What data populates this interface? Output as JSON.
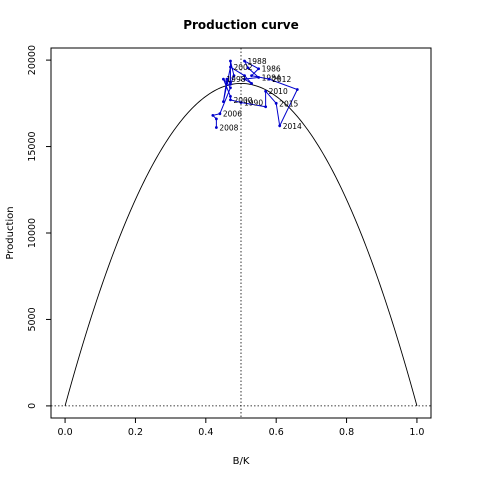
{
  "chart_data": {
    "type": "line",
    "title": "Production curve",
    "xlabel": "B/K",
    "ylabel": "Production",
    "xlim": [
      -0.04,
      1.04
    ],
    "ylim": [
      -700,
      20700
    ],
    "xticks": [
      0.0,
      0.2,
      0.4,
      0.6,
      0.8,
      1.0
    ],
    "xtick_labels": [
      "0.0",
      "0.2",
      "0.4",
      "0.6",
      "0.8",
      "1.0"
    ],
    "yticks": [
      0,
      5000,
      10000,
      15000,
      20000
    ],
    "ytick_labels": [
      "0",
      "5000",
      "10000",
      "15000",
      "20000"
    ],
    "grid": false,
    "reference_lines": {
      "vertical_x": 0.5,
      "horizontal_y": 0
    },
    "curve": {
      "type": "parabola",
      "root_left": 0.0,
      "root_right": 1.0,
      "peak_x": 0.5,
      "peak_y": 18650
    },
    "series": [
      {
        "color": "#0000cc",
        "points": [
          {
            "x": 0.47,
            "y": 18600,
            "label": ""
          },
          {
            "x": 0.48,
            "y": 19100,
            "label": ""
          },
          {
            "x": 0.47,
            "y": 19950,
            "label": ""
          },
          {
            "x": 0.47,
            "y": 18700,
            "label": ""
          },
          {
            "x": 0.46,
            "y": 18900,
            "label": ""
          },
          {
            "x": 0.45,
            "y": 17600,
            "label": ""
          },
          {
            "x": 0.47,
            "y": 19600,
            "label": "2002"
          },
          {
            "x": 0.51,
            "y": 19100,
            "label": ""
          },
          {
            "x": 0.53,
            "y": 18650,
            "label": ""
          },
          {
            "x": 0.51,
            "y": 18900,
            "label": ""
          },
          {
            "x": 0.55,
            "y": 19000,
            "label": "1984"
          },
          {
            "x": 0.52,
            "y": 19550,
            "label": ""
          },
          {
            "x": 0.51,
            "y": 19950,
            "label": "1988"
          },
          {
            "x": 0.55,
            "y": 19500,
            "label": "1986"
          },
          {
            "x": 0.53,
            "y": 19100,
            "label": ""
          },
          {
            "x": 0.58,
            "y": 18900,
            "label": "2012"
          },
          {
            "x": 0.66,
            "y": 18300,
            "label": ""
          },
          {
            "x": 0.61,
            "y": 16200,
            "label": "2014"
          },
          {
            "x": 0.6,
            "y": 17500,
            "label": "2015"
          },
          {
            "x": 0.57,
            "y": 18200,
            "label": "2010"
          },
          {
            "x": 0.57,
            "y": 17300,
            "label": ""
          },
          {
            "x": 0.5,
            "y": 17550,
            "label": "1990"
          },
          {
            "x": 0.47,
            "y": 17700,
            "label": "2000"
          },
          {
            "x": 0.47,
            "y": 17900,
            "label": ""
          },
          {
            "x": 0.45,
            "y": 18900,
            "label": "1998"
          },
          {
            "x": 0.46,
            "y": 18700,
            "label": ""
          },
          {
            "x": 0.47,
            "y": 18400,
            "label": ""
          },
          {
            "x": 0.44,
            "y": 16900,
            "label": "2006"
          },
          {
            "x": 0.42,
            "y": 16800,
            "label": ""
          },
          {
            "x": 0.43,
            "y": 16600,
            "label": ""
          },
          {
            "x": 0.43,
            "y": 16100,
            "label": "2008"
          }
        ]
      }
    ]
  }
}
